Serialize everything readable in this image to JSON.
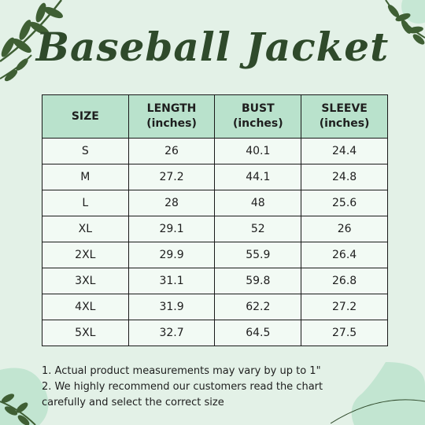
{
  "title": "Baseball Jacket",
  "colors": {
    "background": "#e3f1e7",
    "header": "#b9e2cc",
    "leaf": "#3f5f34",
    "title": "#2f4a2b"
  },
  "table": {
    "headers": [
      {
        "line1": "SIZE",
        "line2": ""
      },
      {
        "line1": "LENGTH",
        "line2": "(inches)"
      },
      {
        "line1": "BUST",
        "line2": "(inches)"
      },
      {
        "line1": "SLEEVE",
        "line2": "(inches)"
      }
    ],
    "rows": [
      [
        "S",
        "26",
        "40.1",
        "24.4"
      ],
      [
        "M",
        "27.2",
        "44.1",
        "24.8"
      ],
      [
        "L",
        "28",
        "48",
        "25.6"
      ],
      [
        "XL",
        "29.1",
        "52",
        "26"
      ],
      [
        "2XL",
        "29.9",
        "55.9",
        "26.4"
      ],
      [
        "3XL",
        "31.1",
        "59.8",
        "26.8"
      ],
      [
        "4XL",
        "31.9",
        "62.2",
        "27.2"
      ],
      [
        "5XL",
        "32.7",
        "64.5",
        "27.5"
      ]
    ]
  },
  "notes": {
    "line1": "1. Actual product measurements may vary by up to 1\"",
    "line2": "2. We highly recommend our customers read the chart",
    "line3": "carefully and select the correct size"
  },
  "decorations": [
    "leaf-branch-icon",
    "leaf-branch-icon",
    "leaf-branch-icon",
    "green-blob"
  ]
}
